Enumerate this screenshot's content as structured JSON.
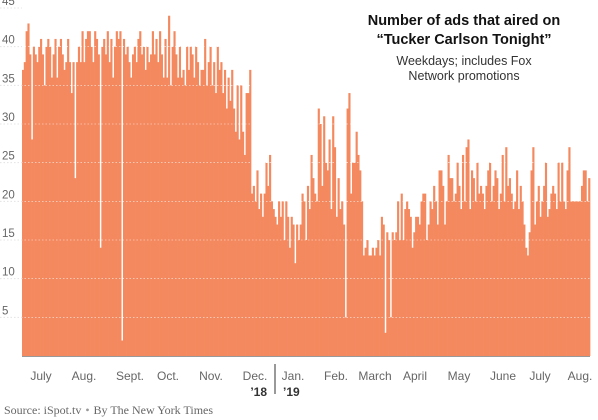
{
  "chart_data": {
    "type": "bar",
    "title": "Number of ads that aired on",
    "title_line2": "“Tucker Carlson Tonight”",
    "subtitle_line1": "Weekdays; includes Fox",
    "subtitle_line2": "Network promotions",
    "ylim": [
      0,
      45
    ],
    "yticks": [
      5,
      10,
      15,
      20,
      25,
      30,
      35,
      40,
      45
    ],
    "x_month_labels": [
      "July",
      "Aug.",
      "Sept.",
      "Oct.",
      "Nov.",
      "Dec.",
      "Jan.",
      "Feb.",
      "March",
      "April",
      "May",
      "June",
      "July",
      "Aug."
    ],
    "year_labels": [
      "’18",
      "’19"
    ],
    "grid": true,
    "bar_color": "#f4895f",
    "series": [
      {
        "values": [
          37,
          38,
          42,
          43,
          39,
          28,
          40,
          39,
          38,
          40,
          41,
          39,
          35,
          40,
          41,
          40,
          36,
          39,
          41,
          36,
          40,
          41,
          39,
          37,
          38,
          41,
          38,
          34,
          38,
          23,
          38,
          40,
          38,
          42,
          38,
          41,
          42,
          42,
          40,
          38,
          42,
          41,
          39,
          14,
          40,
          41,
          39,
          42,
          38,
          41,
          36,
          40,
          42,
          41,
          42,
          2,
          41,
          39,
          40,
          38,
          36,
          39,
          40,
          38,
          41,
          42,
          39,
          40,
          37,
          40,
          38,
          39,
          42,
          39,
          41,
          38,
          42,
          39,
          36,
          41,
          36,
          44,
          35,
          40,
          42,
          39,
          36,
          40,
          36,
          37,
          35,
          40,
          37,
          40,
          39,
          36,
          40,
          38,
          35,
          37,
          37,
          41,
          35,
          38,
          40,
          35,
          38,
          34,
          40,
          37,
          38,
          34,
          37,
          32,
          36,
          33,
          37,
          32,
          29,
          35,
          28,
          35,
          29,
          26,
          34,
          34,
          37,
          21,
          22,
          20,
          24,
          19,
          21,
          18,
          21,
          25,
          22,
          26,
          20,
          19,
          18,
          17,
          20,
          18,
          20,
          15,
          20,
          18,
          14,
          18,
          17,
          12,
          17,
          15,
          17,
          21,
          20,
          15,
          22,
          19,
          26,
          23,
          21,
          20,
          32,
          30,
          22,
          31,
          25,
          24,
          28,
          19,
          31,
          27,
          18,
          23,
          19,
          20,
          17,
          5,
          32,
          34,
          21,
          25,
          25,
          29,
          26,
          24,
          20,
          13,
          14,
          15,
          13,
          13,
          14,
          13,
          14,
          15,
          13,
          18,
          17,
          3,
          16,
          15,
          5,
          16,
          15,
          16,
          20,
          15,
          21,
          15,
          19,
          20,
          19,
          18,
          14,
          16,
          18,
          18,
          17,
          20,
          21,
          21,
          15,
          17,
          20,
          19,
          22,
          20,
          17,
          24,
          24,
          22,
          17,
          20,
          26,
          23,
          23,
          20,
          21,
          25,
          22,
          19,
          26,
          20,
          27,
          28,
          19,
          24,
          23,
          20,
          25,
          21,
          22,
          21,
          19,
          22,
          24,
          25,
          20,
          22,
          24,
          23,
          19,
          21,
          26,
          20,
          27,
          22,
          23,
          21,
          19,
          20,
          24,
          19,
          22,
          20,
          17,
          14,
          13,
          16,
          24,
          27,
          17,
          20,
          22,
          18,
          20,
          22,
          25,
          18,
          19,
          21,
          22,
          21,
          19,
          25,
          20,
          25,
          20,
          19,
          24,
          27,
          20,
          20,
          20,
          20,
          20,
          20,
          22,
          24,
          24,
          20,
          23
        ]
      }
    ]
  },
  "footer": {
    "source": "Source: iSpot.tv",
    "separator": "•",
    "credit": "By The New York Times"
  }
}
